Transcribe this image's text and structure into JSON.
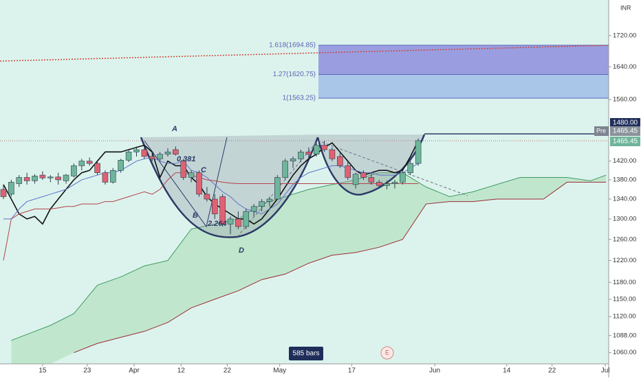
{
  "chart_data": {
    "type": "candlestick",
    "currency": "INR",
    "xlim": [
      -0.44,
      77.33
    ],
    "xticks": [
      {
        "value": 5.0,
        "label": "15"
      },
      {
        "value": 10.7,
        "label": "23"
      },
      {
        "value": 16.7,
        "label": "Apr"
      },
      {
        "value": 22.7,
        "label": "12"
      },
      {
        "value": 28.6,
        "label": "22"
      },
      {
        "value": 35.3,
        "label": "May"
      },
      {
        "value": 44.5,
        "label": "17"
      },
      {
        "value": 55.1,
        "label": "Jun"
      },
      {
        "value": 64.3,
        "label": "14"
      },
      {
        "value": 70.1,
        "label": "22"
      },
      {
        "value": 76.9,
        "label": "Jul"
      }
    ],
    "ylim": [
      1042,
      1816
    ],
    "log_scale": true,
    "yticks": [
      {
        "value": 1720,
        "label": "1720.00"
      },
      {
        "value": 1640,
        "label": "1640.00"
      },
      {
        "value": 1560,
        "label": "1560.00"
      },
      {
        "value": 1420,
        "label": "1420.00"
      },
      {
        "value": 1380,
        "label": "1380.00"
      },
      {
        "value": 1340,
        "label": "1340.00"
      },
      {
        "value": 1300,
        "label": "1300.00"
      },
      {
        "value": 1260,
        "label": "1260.00"
      },
      {
        "value": 1220,
        "label": "1220.00"
      },
      {
        "value": 1180,
        "label": "1180.00"
      },
      {
        "value": 1150,
        "label": "1150.00"
      },
      {
        "value": 1120,
        "label": "1120.00"
      },
      {
        "value": 1088,
        "label": "1088.00"
      },
      {
        "value": 1060,
        "label": "1060.00"
      }
    ],
    "up_color": "#6fb59b",
    "down_color": "#e06272",
    "open": [
      1360,
      1350,
      1372,
      1385,
      1378,
      1390,
      1384,
      1386,
      1378,
      1388,
      1410,
      1420,
      1415,
      1395,
      1375,
      1400,
      1422,
      1440,
      1445,
      1430,
      1425,
      1435,
      1445,
      1420,
      1385,
      1395,
      1350,
      1340,
      1345,
      1290,
      1300,
      1285,
      1315,
      1325,
      1335,
      1340,
      1385,
      1420,
      1425,
      1440,
      1435,
      1455,
      1445,
      1430,
      1410,
      1370,
      1395,
      1385,
      1375,
      1368,
      1372,
      1375,
      1395,
      1415
    ],
    "high": [
      1370,
      1380,
      1390,
      1395,
      1392,
      1398,
      1390,
      1395,
      1392,
      1415,
      1425,
      1428,
      1420,
      1400,
      1405,
      1425,
      1445,
      1452,
      1455,
      1440,
      1440,
      1448,
      1452,
      1425,
      1400,
      1400,
      1365,
      1350,
      1350,
      1305,
      1315,
      1320,
      1330,
      1340,
      1345,
      1390,
      1425,
      1430,
      1445,
      1450,
      1460,
      1465,
      1450,
      1440,
      1420,
      1395,
      1400,
      1395,
      1380,
      1378,
      1380,
      1400,
      1420,
      1470
    ],
    "low": [
      1340,
      1345,
      1365,
      1370,
      1372,
      1380,
      1375,
      1370,
      1372,
      1385,
      1400,
      1410,
      1390,
      1370,
      1372,
      1395,
      1418,
      1430,
      1425,
      1420,
      1420,
      1430,
      1432,
      1380,
      1375,
      1345,
      1335,
      1300,
      1285,
      1270,
      1280,
      1280,
      1305,
      1315,
      1325,
      1338,
      1380,
      1405,
      1418,
      1425,
      1430,
      1440,
      1420,
      1405,
      1380,
      1362,
      1380,
      1370,
      1362,
      1360,
      1362,
      1370,
      1390,
      1410
    ],
    "close": [
      1345,
      1375,
      1385,
      1378,
      1388,
      1384,
      1386,
      1380,
      1390,
      1410,
      1420,
      1415,
      1395,
      1375,
      1400,
      1422,
      1440,
      1445,
      1430,
      1425,
      1435,
      1440,
      1435,
      1385,
      1395,
      1350,
      1340,
      1310,
      1290,
      1300,
      1285,
      1315,
      1325,
      1335,
      1340,
      1385,
      1420,
      1425,
      1440,
      1435,
      1455,
      1445,
      1425,
      1410,
      1385,
      1392,
      1385,
      1375,
      1368,
      1372,
      1375,
      1395,
      1415,
      1465
    ],
    "lines": [
      {
        "color": "#111111",
        "values": [
          1370,
          1340,
          1310,
          1300,
          1305,
          1290,
          1320,
          1340,
          1360,
          1380,
          1395,
          1400,
          1420,
          1440,
          1440,
          1440,
          1445,
          1450,
          1455,
          1440,
          1385,
          1420,
          1410,
          1410,
          1385,
          1370,
          1345,
          1330,
          1320,
          1310,
          1300,
          1300,
          1290,
          1300,
          1320,
          1340,
          1365,
          1390,
          1410,
          1425,
          1435,
          1450,
          1460,
          1440,
          1420,
          1400,
          1390,
          1395,
          1400,
          1400,
          1395,
          1400,
          1430,
          1465
        ]
      },
      {
        "color": "#5b73c8",
        "values": [
          1300,
          1300,
          1320,
          1335,
          1340,
          1345,
          1350,
          1355,
          1360,
          1370,
          1380,
          1385,
          1390,
          1395,
          1395,
          1400,
          1410,
          1420,
          1425,
          1428,
          1420,
          1415,
          1415,
          1420,
          1400,
          1395,
          1385,
          1370,
          1355,
          1345,
          1330,
          1320,
          1315,
          1310,
          1320,
          1330,
          1350,
          1370,
          1385,
          1395,
          1400,
          1405,
          1410,
          1410,
          1405,
          1400,
          1395,
          1395,
          1390,
          1390,
          1390,
          1395,
          1405,
          1415
        ]
      },
      {
        "color": "#b5404a",
        "values": [
          1220,
          1300,
          1310,
          1315,
          1320,
          1320,
          1320,
          1322,
          1325,
          1325,
          1330,
          1330,
          1330,
          1335,
          1335,
          1340,
          1345,
          1350,
          1355,
          1350,
          1360,
          1380,
          1395,
          1395,
          1390,
          1385,
          1380,
          1378,
          1375,
          1373,
          1372,
          1372,
          1372,
          1372,
          1372,
          1372,
          1372,
          1372,
          1372,
          1372,
          1372,
          1372,
          1372,
          1372,
          1372,
          1372,
          1372,
          1372,
          1372,
          1372,
          1372,
          1372,
          1372,
          1372
        ]
      }
    ],
    "cloud": {
      "x": [
        1,
        3,
        6,
        9,
        12,
        15,
        18,
        21,
        24,
        27,
        30,
        33,
        36,
        39,
        42,
        45,
        48,
        51,
        54,
        57,
        60,
        63,
        66,
        69,
        72,
        75,
        77
      ],
      "span_a": {
        "color": "#3f9a63",
        "values": [
          1080,
          1090,
          1105,
          1125,
          1175,
          1190,
          1210,
          1220,
          1280,
          1290,
          1300,
          1330,
          1345,
          1360,
          1370,
          1380,
          1395,
          1395,
          1365,
          1345,
          1355,
          1370,
          1385,
          1385,
          1385,
          1378,
          1390
        ]
      },
      "span_b": {
        "color": "#9b2a35",
        "values": [
          null,
          null,
          null,
          1060,
          1075,
          1085,
          1095,
          1110,
          1135,
          1150,
          1165,
          1185,
          1195,
          1215,
          1230,
          1235,
          1245,
          1260,
          1330,
          1335,
          1335,
          1340,
          1340,
          1340,
          1375,
          1375,
          1375
        ]
      },
      "fill": "#b9e3c4"
    },
    "fib_levels": [
      {
        "label": "1.618(1694.85)",
        "price": 1694.85,
        "color": "#9a9ee0"
      },
      {
        "label": "1.27(1620.75)",
        "price": 1620.75,
        "color": "#a9c5e8"
      },
      {
        "label": "1(1563.25)",
        "price": 1563.25
      }
    ],
    "price_line": {
      "label": "1480.00",
      "value": 1480
    },
    "pre_label": "Pre",
    "pre_price": "1465.45",
    "last_price": "1465.45",
    "annotations": [
      "A",
      "B",
      "C",
      "D",
      "0.381",
      "2.264"
    ],
    "bars_label": "585 bars",
    "event_label": "E"
  }
}
